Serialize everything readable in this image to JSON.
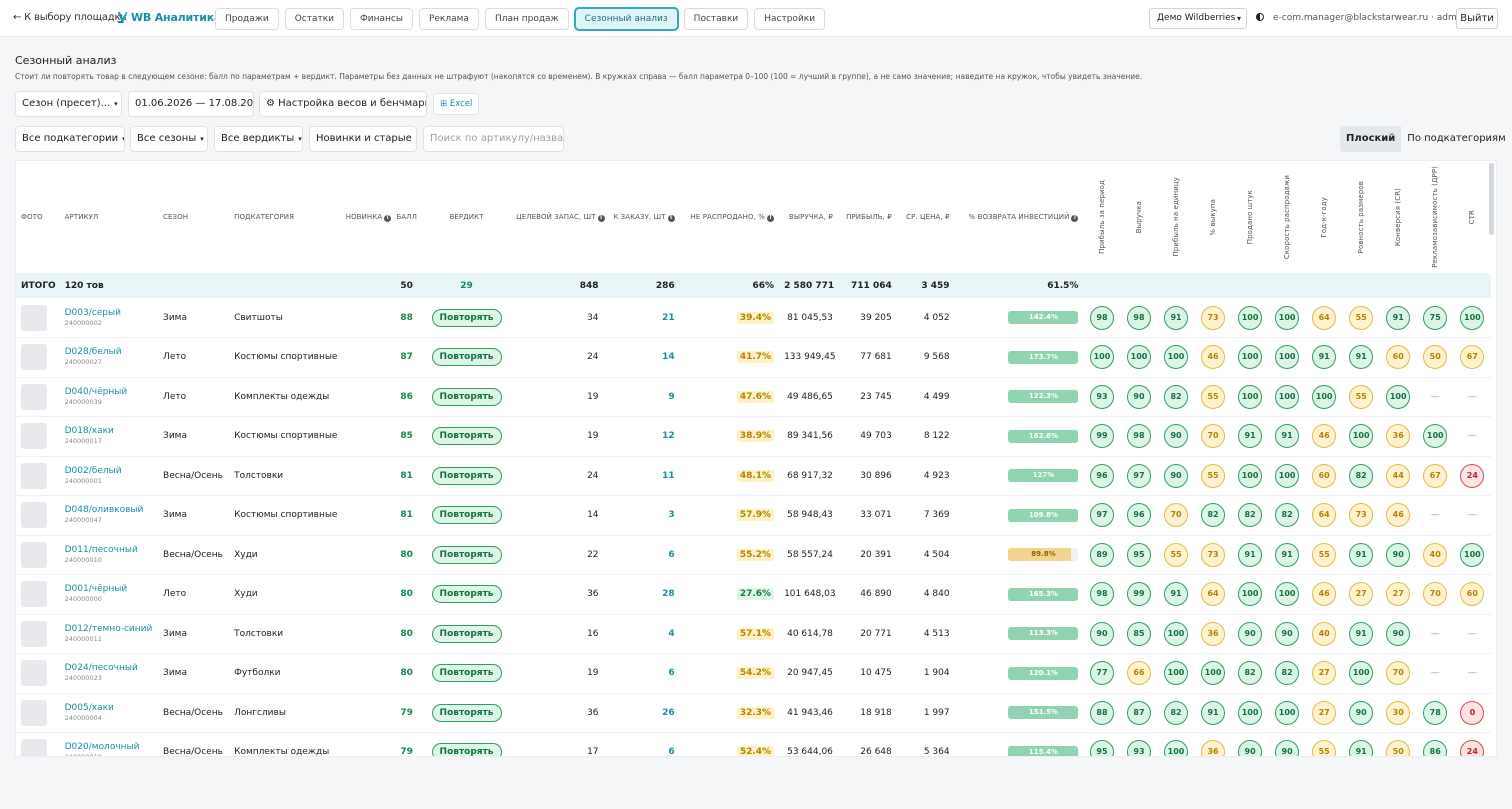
{
  "nav": {
    "back": "← К выбору площадки",
    "logo": "WB Аналитика",
    "tabs": [
      "Продажи",
      "Остатки",
      "Финансы",
      "Реклама",
      "План продаж",
      "Сезонный анализ",
      "Поставки",
      "Настройки"
    ],
    "active_tab": 5,
    "account": "Демо Wildberries",
    "user": "e-com.manager@blackstarwear.ru · admin",
    "logout": "Выйти"
  },
  "page": {
    "title": "Сезонный анализ",
    "description": "Стоит ли повторять товар в следующем сезоне: балл по параметрам + вердикт. Параметры без данных не штрафуют (накопятся со временем). В кружках справа — балл параметра 0–100 (100 = лучший в группе), а не само значение; наведите на кружок, чтобы увидеть значение."
  },
  "controls": {
    "season_preset": "Сезон (пресет)...",
    "date_range": "01.06.2026 — 17.08.2026",
    "weights": "⚙ Настройка весов и бенчмарка",
    "excel": "⊞ Excel",
    "subcategories": "Все подкатегории",
    "seasons": "Все сезоны",
    "verdicts": "Все вердикты",
    "novelty": "Новинки и старые",
    "search_placeholder": "Поиск по артикулу/названию",
    "view_flat": "Плоский",
    "view_grouped": "По подкатегориям"
  },
  "table": {
    "headers": {
      "photo": "Фото",
      "article": "Артикул",
      "season": "Сезон",
      "subcategory": "Подкатегория",
      "novelty": "Новинка",
      "score": "Балл",
      "verdict": "Вердикт",
      "target_stock": "Целевой запас, шт",
      "to_order": "К заказу, шт",
      "unsold": "Не распродано, %",
      "revenue": "Выручка, ₽",
      "profit": "Прибыль, ₽",
      "avg_price": "Ср. цена, ₽",
      "roi": "% возврата инвестиций"
    },
    "param_headers": [
      "Прибыль за период",
      "Выручка",
      "Прибыль на единицу",
      "% выкупа",
      "Продано штук",
      "Скорость распродажи",
      "Год-к-году",
      "Ровность размеров",
      "Конверсия (CR)",
      "Рекламозависимость (ДРР)",
      "CTR"
    ],
    "total": {
      "label": "ИТОГО",
      "count": "120 тов",
      "score": "50",
      "verdict": "29",
      "target_stock": "848",
      "to_order": "286",
      "unsold": "66%",
      "revenue": "2 580 771",
      "profit": "711 064",
      "avg_price": "3 459",
      "roi": "61.5%"
    },
    "rows": [
      {
        "article": "D003/серый",
        "code": "240000002",
        "season": "Зима",
        "subcategory": "Свитшоты",
        "score": "88",
        "verdict": "Повторять",
        "target": "34",
        "order": "21",
        "unsold": "39.4%",
        "unsold_level": "warn",
        "revenue": "81 045,53",
        "profit": "39 205",
        "price": "4 052",
        "roi": "142.4%",
        "roi_pct": 100,
        "roi_level": "good",
        "params": [
          "98",
          "98",
          "91",
          "73",
          "100",
          "100",
          "64",
          "55",
          "91",
          "75",
          "100"
        ]
      },
      {
        "article": "D028/белый",
        "code": "240000027",
        "season": "Лето",
        "subcategory": "Костюмы спортивные",
        "score": "87",
        "verdict": "Повторять",
        "target": "24",
        "order": "14",
        "unsold": "41.7%",
        "unsold_level": "warn",
        "revenue": "133 949,45",
        "profit": "77 681",
        "price": "9 568",
        "roi": "173.7%",
        "roi_pct": 100,
        "roi_level": "good",
        "params": [
          "100",
          "100",
          "100",
          "46",
          "100",
          "100",
          "91",
          "91",
          "60",
          "50",
          "67"
        ]
      },
      {
        "article": "D040/чёрный",
        "code": "240000039",
        "season": "Лето",
        "subcategory": "Комплекты одежды",
        "score": "86",
        "verdict": "Повторять",
        "target": "19",
        "order": "9",
        "unsold": "47.6%",
        "unsold_level": "warn",
        "revenue": "49 486,65",
        "profit": "23 745",
        "price": "4 499",
        "roi": "122.3%",
        "roi_pct": 100,
        "roi_level": "good",
        "params": [
          "93",
          "90",
          "82",
          "55",
          "100",
          "100",
          "100",
          "55",
          "100",
          "—",
          "—"
        ]
      },
      {
        "article": "D018/хаки",
        "code": "240000017",
        "season": "Зима",
        "subcategory": "Костюмы спортивные",
        "score": "85",
        "verdict": "Повторять",
        "target": "19",
        "order": "12",
        "unsold": "38.9%",
        "unsold_level": "warn",
        "revenue": "89 341,56",
        "profit": "49 703",
        "price": "8 122",
        "roi": "162.6%",
        "roi_pct": 100,
        "roi_level": "good",
        "params": [
          "99",
          "98",
          "90",
          "70",
          "91",
          "91",
          "46",
          "100",
          "36",
          "100",
          "—"
        ]
      },
      {
        "article": "D002/белый",
        "code": "240000001",
        "season": "Весна/Осень",
        "subcategory": "Толстовки",
        "score": "81",
        "verdict": "Повторять",
        "target": "24",
        "order": "11",
        "unsold": "48.1%",
        "unsold_level": "warn",
        "revenue": "68 917,32",
        "profit": "30 896",
        "price": "4 923",
        "roi": "127%",
        "roi_pct": 100,
        "roi_level": "good",
        "params": [
          "96",
          "97",
          "90",
          "55",
          "100",
          "100",
          "60",
          "82",
          "44",
          "67",
          "24"
        ]
      },
      {
        "article": "D048/оливковый",
        "code": "240000047",
        "season": "Зима",
        "subcategory": "Костюмы спортивные",
        "score": "81",
        "verdict": "Повторять",
        "target": "14",
        "order": "3",
        "unsold": "57.9%",
        "unsold_level": "warn",
        "revenue": "58 948,43",
        "profit": "33 071",
        "price": "7 369",
        "roi": "109.8%",
        "roi_pct": 100,
        "roi_level": "good",
        "params": [
          "97",
          "96",
          "70",
          "82",
          "82",
          "82",
          "64",
          "73",
          "46",
          "—",
          "—"
        ]
      },
      {
        "article": "D011/песочный",
        "code": "240000010",
        "season": "Весна/Осень",
        "subcategory": "Худи",
        "score": "80",
        "verdict": "Повторять",
        "target": "22",
        "order": "6",
        "unsold": "55.2%",
        "unsold_level": "warn",
        "revenue": "58 557,24",
        "profit": "20 391",
        "price": "4 504",
        "roi": "89.8%",
        "roi_pct": 90,
        "roi_level": "low",
        "params": [
          "89",
          "95",
          "55",
          "73",
          "91",
          "91",
          "55",
          "91",
          "90",
          "40",
          "100"
        ]
      },
      {
        "article": "D001/чёрный",
        "code": "240000000",
        "season": "Лето",
        "subcategory": "Худи",
        "score": "80",
        "verdict": "Повторять",
        "target": "36",
        "order": "28",
        "unsold": "27.6%",
        "unsold_level": "good",
        "revenue": "101 648,03",
        "profit": "46 890",
        "price": "4 840",
        "roi": "165.3%",
        "roi_pct": 100,
        "roi_level": "good",
        "params": [
          "98",
          "99",
          "91",
          "64",
          "100",
          "100",
          "46",
          "27",
          "27",
          "70",
          "60"
        ]
      },
      {
        "article": "D012/темно-синий",
        "code": "240000011",
        "season": "Зима",
        "subcategory": "Толстовки",
        "score": "80",
        "verdict": "Повторять",
        "target": "16",
        "order": "4",
        "unsold": "57.1%",
        "unsold_level": "warn",
        "revenue": "40 614,78",
        "profit": "20 771",
        "price": "4 513",
        "roi": "113.3%",
        "roi_pct": 100,
        "roi_level": "good",
        "params": [
          "90",
          "85",
          "100",
          "36",
          "90",
          "90",
          "40",
          "91",
          "90",
          "—",
          "—"
        ]
      },
      {
        "article": "D024/песочный",
        "code": "240000023",
        "season": "Зима",
        "subcategory": "Футболки",
        "score": "80",
        "verdict": "Повторять",
        "target": "19",
        "order": "6",
        "unsold": "54.2%",
        "unsold_level": "warn",
        "revenue": "20 947,45",
        "profit": "10 475",
        "price": "1 904",
        "roi": "120.1%",
        "roi_pct": 100,
        "roi_level": "good",
        "params": [
          "77",
          "66",
          "100",
          "100",
          "82",
          "82",
          "27",
          "100",
          "70",
          "—",
          "—"
        ]
      },
      {
        "article": "D005/хаки",
        "code": "240000004",
        "season": "Весна/Осень",
        "subcategory": "Лонгсливы",
        "score": "79",
        "verdict": "Повторять",
        "target": "36",
        "order": "26",
        "unsold": "32.3%",
        "unsold_level": "warn",
        "revenue": "41 943,46",
        "profit": "18 918",
        "price": "1 997",
        "roi": "151.5%",
        "roi_pct": 100,
        "roi_level": "good",
        "params": [
          "88",
          "87",
          "82",
          "91",
          "100",
          "100",
          "27",
          "90",
          "30",
          "78",
          "0"
        ]
      },
      {
        "article": "D020/молочный",
        "code": "240000019",
        "season": "Весна/Осень",
        "subcategory": "Комплекты одежды",
        "score": "79",
        "verdict": "Повторять",
        "target": "17",
        "order": "6",
        "unsold": "52.4%",
        "unsold_level": "warn",
        "revenue": "53 644,06",
        "profit": "26 648",
        "price": "5 364",
        "roi": "115.4%",
        "roi_pct": 100,
        "roi_level": "good",
        "params": [
          "95",
          "93",
          "100",
          "36",
          "90",
          "90",
          "55",
          "91",
          "50",
          "86",
          "24"
        ]
      }
    ]
  },
  "colors": {
    "accent": "#1a8fa0",
    "good": "#2f9e64",
    "warn": "#e4b94a",
    "bad": "#d84a4a"
  }
}
